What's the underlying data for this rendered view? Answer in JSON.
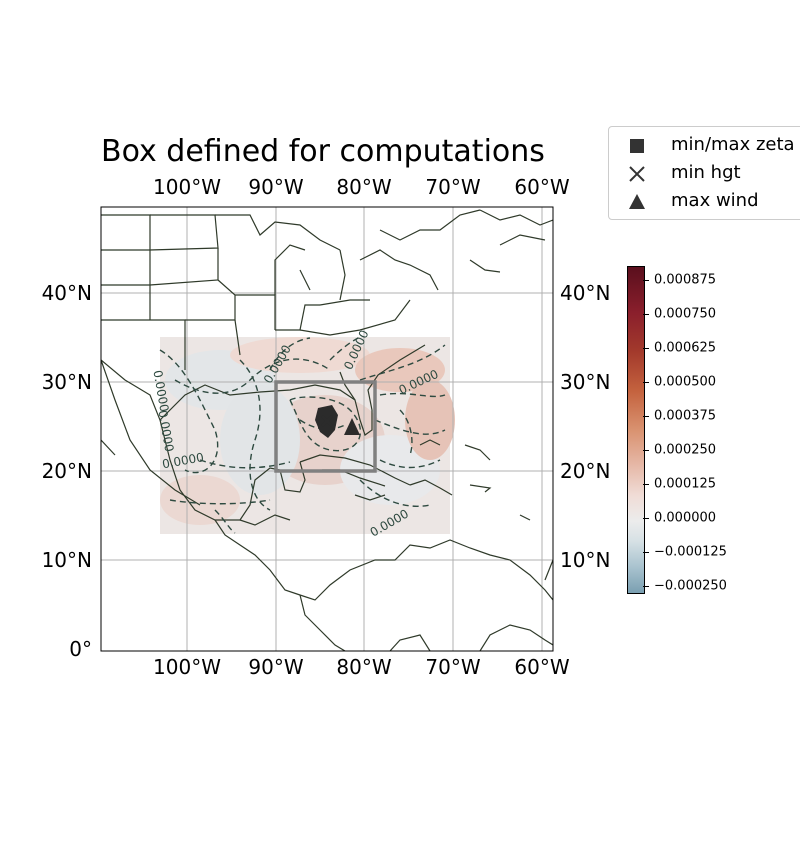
{
  "title": "Box defined for computations",
  "lon_ticks": [
    "100°W",
    "90°W",
    "80°W",
    "70°W",
    "60°W"
  ],
  "lat_ticks": [
    "40°N",
    "30°N",
    "20°N",
    "10°N",
    "0°"
  ],
  "legend": {
    "items": [
      {
        "label": "min/max zeta",
        "marker": "square-icon"
      },
      {
        "label": "min hgt",
        "marker": "x-icon"
      },
      {
        "label": "max wind",
        "marker": "triangle-icon"
      }
    ]
  },
  "colorbar": {
    "labels": [
      "0.000875",
      "0.000750",
      "0.000625",
      "0.000500",
      "0.000375",
      "0.000250",
      "0.000125",
      "0.000000",
      "−0.000125",
      "−0.000250"
    ],
    "colors": [
      "#7a9fb1",
      "#ececec",
      "#c4623e",
      "#5a0f1d"
    ]
  },
  "contour_labels": [
    "0.0000",
    "0.0000",
    "0.0000",
    "0.0000",
    "0.0000",
    "0.0000",
    "0.0000"
  ],
  "computation_box": {
    "lon_min": -90,
    "lon_max": -79,
    "lat_min": 20,
    "lat_max": 30
  },
  "colors": {
    "box": "#808080",
    "coast": "#2f3a2a",
    "grid": "#b0b0b0",
    "contour": "#2e4a40",
    "marker": "#2b2b2b"
  }
}
